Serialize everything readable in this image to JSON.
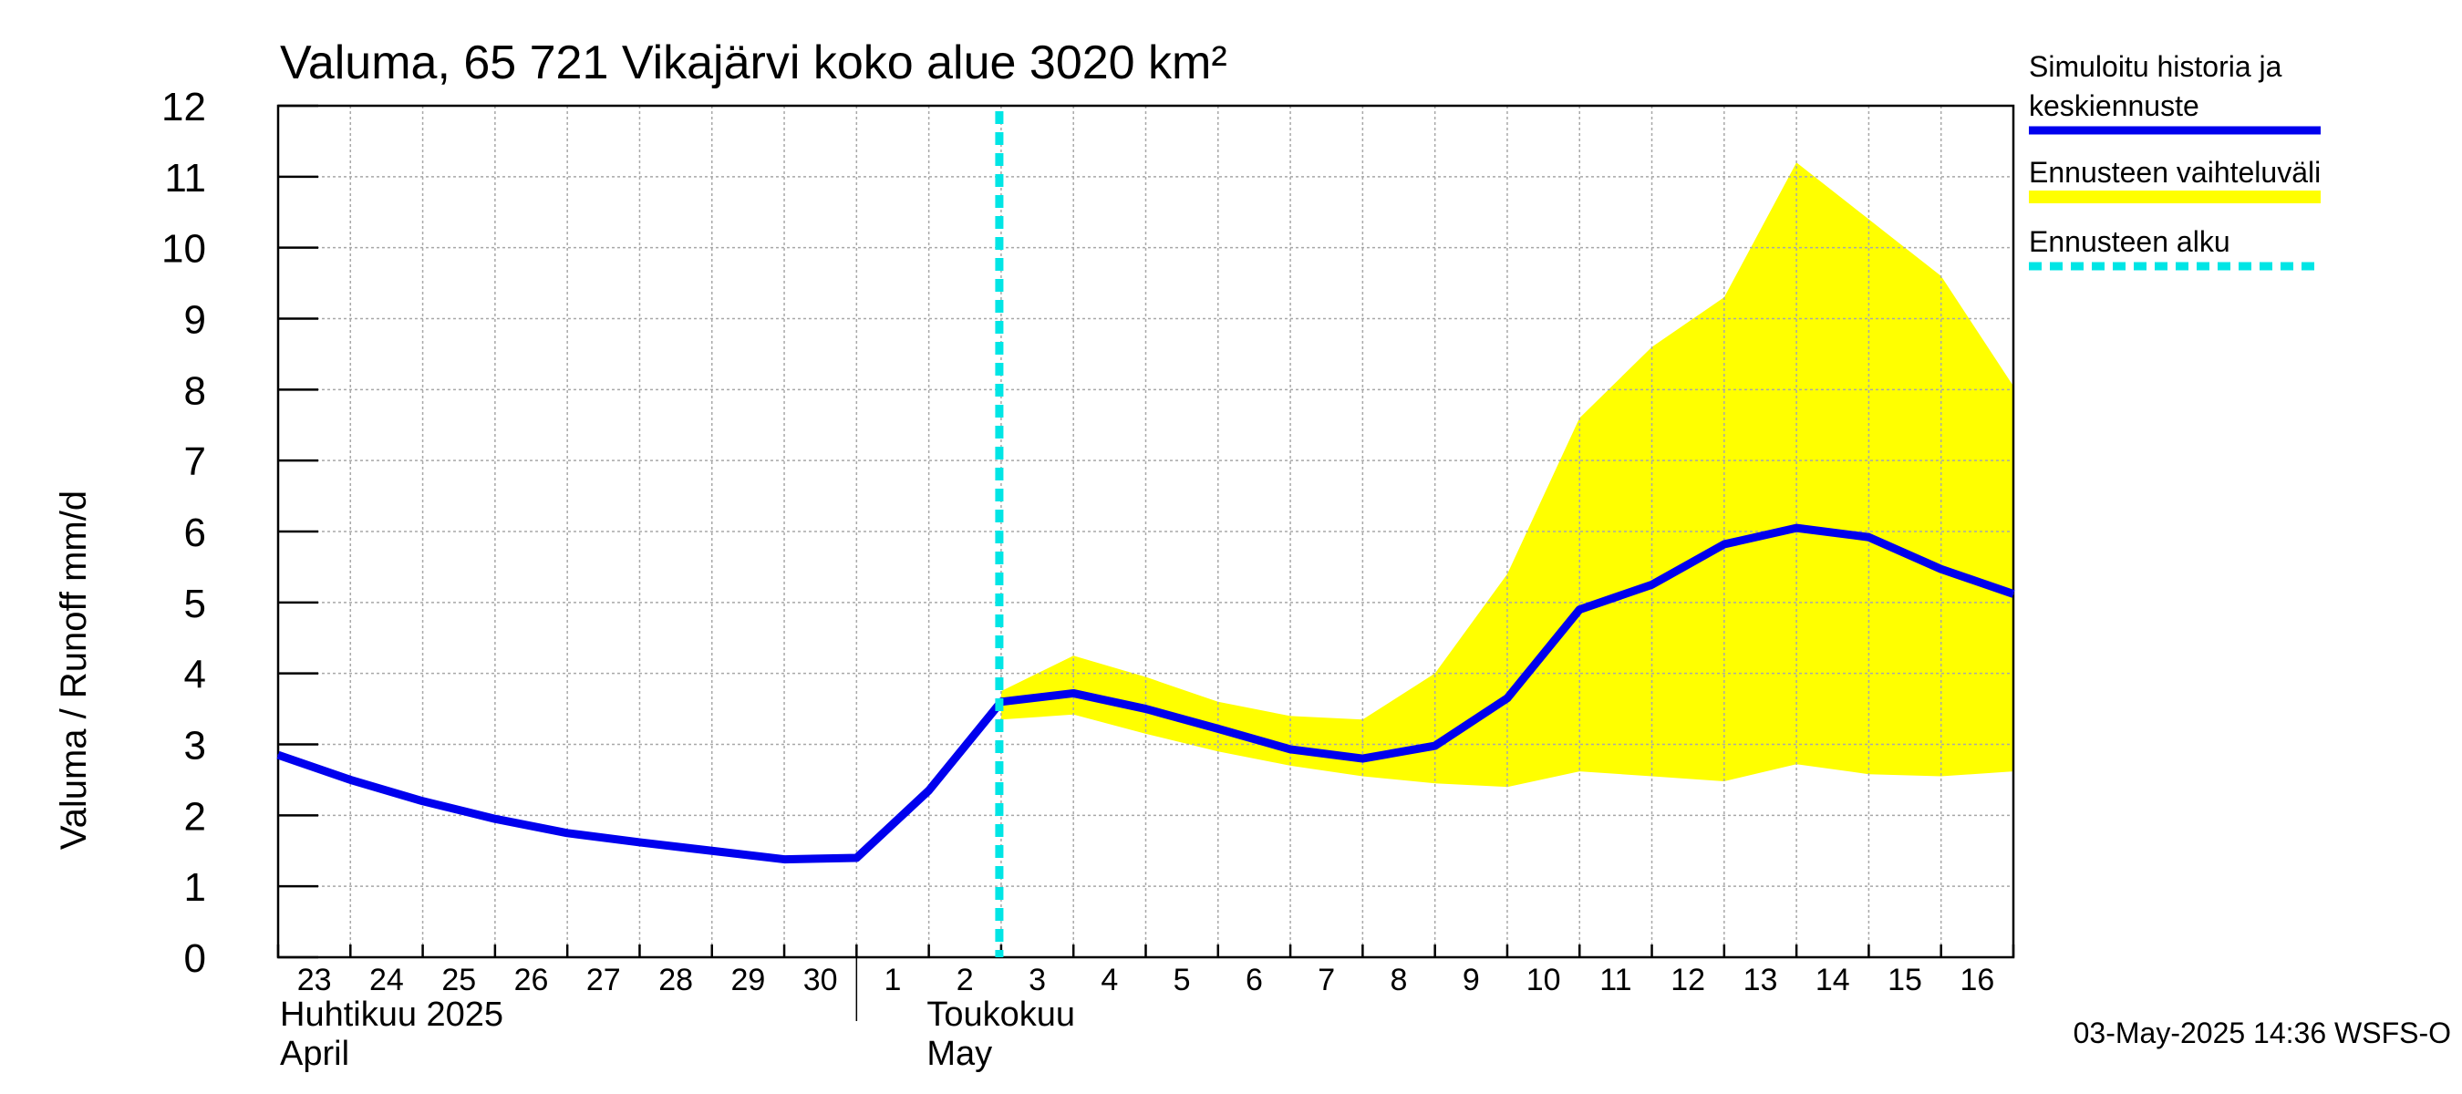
{
  "chart_data": {
    "type": "line",
    "title": "Valuma, 65 721 Vikajärvi koko alue 3020 km²",
    "ylabel": "Valuma / Runoff    mm/d",
    "ylim": [
      0,
      12
    ],
    "yticks": [
      "0",
      "1",
      "2",
      "3",
      "4",
      "5",
      "6",
      "7",
      "8",
      "9",
      "10",
      "11",
      "12"
    ],
    "x_labels": [
      "23",
      "24",
      "25",
      "26",
      "27",
      "28",
      "29",
      "30",
      "1",
      "2",
      "3",
      "4",
      "5",
      "6",
      "7",
      "8",
      "9",
      "10",
      "11",
      "12",
      "13",
      "14",
      "15",
      "16"
    ],
    "x_dates": [
      "2025-04-23",
      "2025-04-24",
      "2025-04-25",
      "2025-04-26",
      "2025-04-27",
      "2025-04-28",
      "2025-04-29",
      "2025-04-30",
      "2025-05-01",
      "2025-05-02",
      "2025-05-03",
      "2025-05-04",
      "2025-05-05",
      "2025-05-06",
      "2025-05-07",
      "2025-05-08",
      "2025-05-09",
      "2025-05-10",
      "2025-05-11",
      "2025-05-12",
      "2025-05-13",
      "2025-05-14",
      "2025-05-15",
      "2025-05-16",
      "2025-05-17"
    ],
    "months": [
      {
        "line1": "Huhtikuu  2025",
        "line2": "April",
        "start": "2025-04-23"
      },
      {
        "line1": "Toukokuu",
        "line2": "May",
        "start": "2025-05-01"
      }
    ],
    "grid": true,
    "legend_position": "right",
    "forecast_start": "2025-05-03",
    "series": [
      {
        "name": "Simuloitu historia ja keskiennuste",
        "color": "#0000ee",
        "x": [
          "2025-04-23",
          "2025-04-24",
          "2025-04-25",
          "2025-04-26",
          "2025-04-27",
          "2025-04-28",
          "2025-04-29",
          "2025-04-30",
          "2025-05-01",
          "2025-05-02",
          "2025-05-03",
          "2025-05-04",
          "2025-05-05",
          "2025-05-06",
          "2025-05-07",
          "2025-05-08",
          "2025-05-09",
          "2025-05-10",
          "2025-05-11",
          "2025-05-12",
          "2025-05-13",
          "2025-05-14",
          "2025-05-15",
          "2025-05-16",
          "2025-05-17"
        ],
        "y": [
          2.85,
          2.5,
          2.2,
          1.95,
          1.75,
          1.62,
          1.5,
          1.38,
          1.4,
          2.35,
          3.6,
          3.72,
          3.5,
          3.22,
          2.93,
          2.8,
          2.98,
          3.65,
          4.9,
          5.25,
          5.82,
          6.05,
          5.92,
          5.47,
          5.12
        ]
      }
    ],
    "band": {
      "name": "Ennusteen vaihteluväli",
      "color": "#ffff00",
      "x": [
        "2025-05-03",
        "2025-05-04",
        "2025-05-05",
        "2025-05-06",
        "2025-05-07",
        "2025-05-08",
        "2025-05-09",
        "2025-05-10",
        "2025-05-11",
        "2025-05-12",
        "2025-05-13",
        "2025-05-14",
        "2025-05-15",
        "2025-05-16",
        "2025-05-17"
      ],
      "upper": [
        3.75,
        4.25,
        3.95,
        3.6,
        3.4,
        3.35,
        4.0,
        5.4,
        7.6,
        8.6,
        9.3,
        11.2,
        10.4,
        9.6,
        8.05
      ],
      "lower": [
        3.35,
        3.42,
        3.15,
        2.9,
        2.7,
        2.55,
        2.45,
        2.4,
        2.62,
        2.55,
        2.48,
        2.72,
        2.58,
        2.55,
        2.62
      ]
    },
    "legend": [
      {
        "lines": [
          "Simuloitu historia ja",
          "keskiennuste"
        ],
        "style": "solid",
        "color": "#0000ee"
      },
      {
        "lines": [
          "Ennusteen vaihteluväli"
        ],
        "style": "band",
        "color": "#ffff00"
      },
      {
        "lines": [
          "Ennusteen alku"
        ],
        "style": "dashed",
        "color": "#00e5e5"
      }
    ],
    "footer": "03-May-2025 14:36 WSFS-O"
  }
}
